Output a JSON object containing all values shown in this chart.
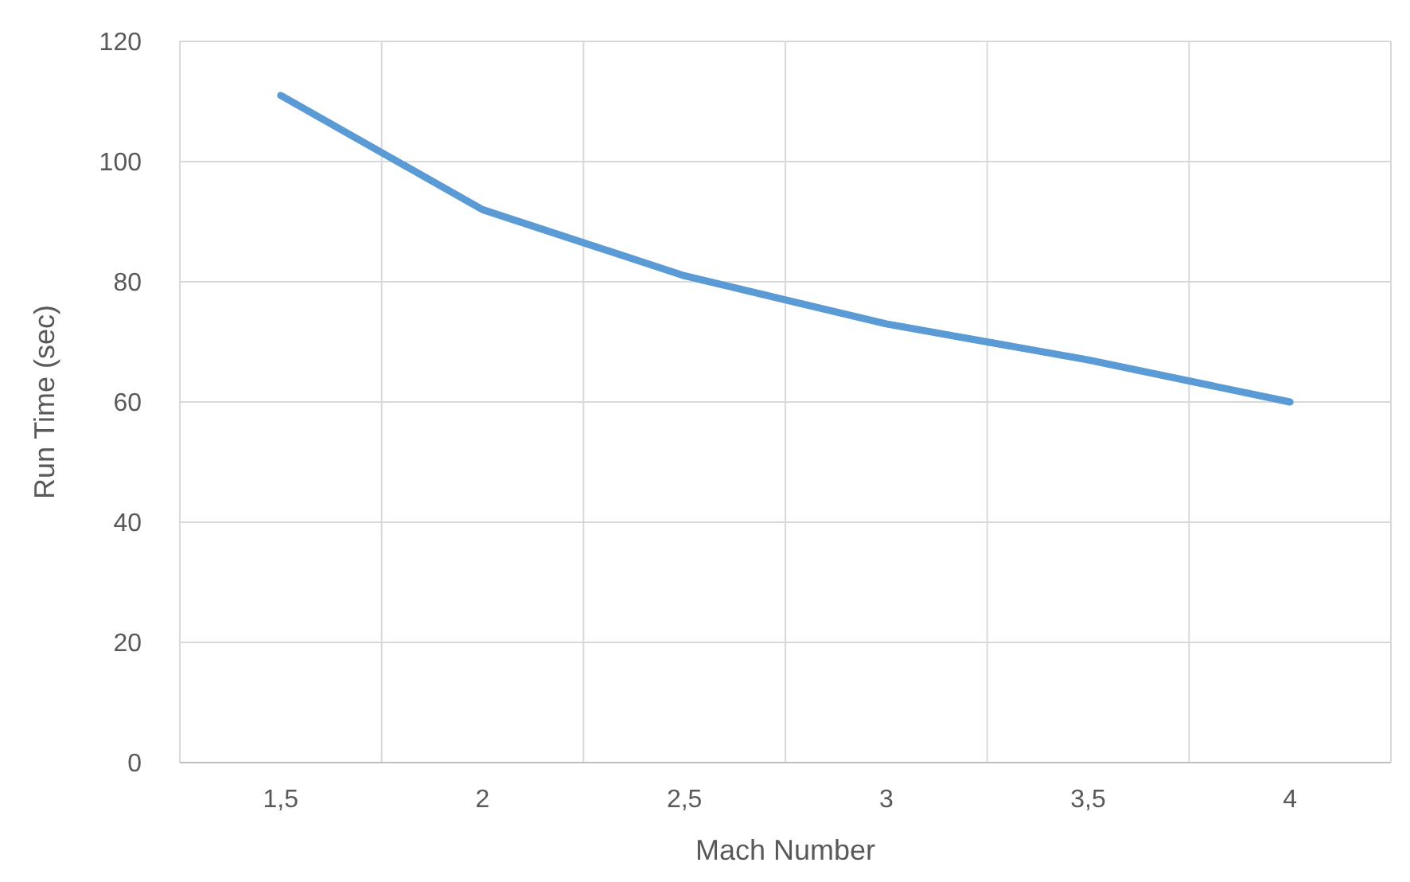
{
  "chart_data": {
    "type": "line",
    "xlabel": "Mach Number",
    "ylabel": "Run Time (sec)",
    "categories": [
      "1,5",
      "2",
      "2,5",
      "3",
      "3,5",
      "4"
    ],
    "series": [
      {
        "color": "#5b9bd5",
        "values": [
          111,
          92,
          81,
          73,
          67,
          60
        ]
      }
    ],
    "ylim": [
      0,
      120
    ],
    "yticks": [
      0,
      20,
      40,
      60,
      80,
      100,
      120
    ],
    "grid": true,
    "marker": "none",
    "line_style": "solid"
  }
}
